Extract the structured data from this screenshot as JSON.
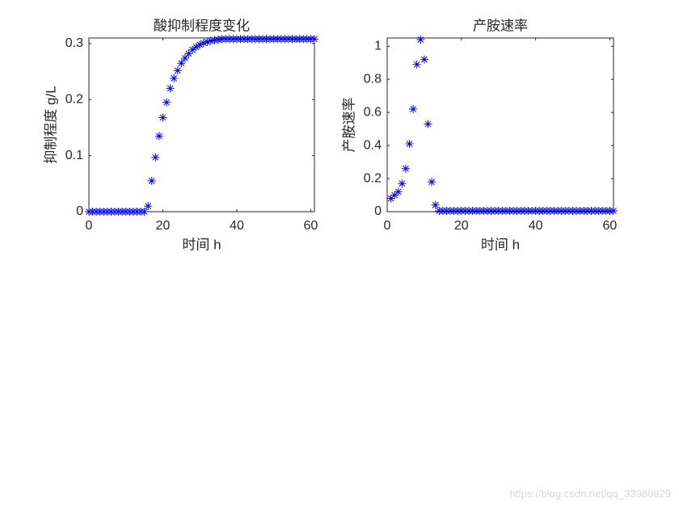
{
  "chart_data": [
    {
      "type": "scatter",
      "title": "酸抑制程度变化",
      "x_label": "时间 h",
      "y_label": "抑制程度 g/L",
      "color": "#0000ff",
      "marker": "asterisk",
      "xlim": [
        0,
        61
      ],
      "ylim": [
        0,
        0.31
      ],
      "xticks": [
        0,
        20,
        40,
        60
      ],
      "yticks": [
        0,
        0.1,
        0.2,
        0.3
      ],
      "grid": false,
      "x": [
        0,
        1,
        2,
        3,
        4,
        5,
        6,
        7,
        8,
        9,
        10,
        11,
        12,
        13,
        14,
        15,
        16,
        17,
        18,
        19,
        20,
        21,
        22,
        23,
        24,
        25,
        26,
        27,
        28,
        29,
        30,
        31,
        32,
        33,
        34,
        35,
        36,
        37,
        38,
        39,
        40,
        41,
        42,
        43,
        44,
        45,
        46,
        47,
        48,
        49,
        50,
        51,
        52,
        53,
        54,
        55,
        56,
        57,
        58,
        59,
        60,
        61
      ],
      "values": [
        0,
        0,
        0,
        0,
        0,
        0,
        0,
        0,
        0,
        0,
        0,
        0,
        0,
        0,
        0,
        0,
        0.01,
        0.055,
        0.097,
        0.135,
        0.168,
        0.195,
        0.22,
        0.238,
        0.252,
        0.265,
        0.274,
        0.282,
        0.289,
        0.294,
        0.298,
        0.301,
        0.303,
        0.305,
        0.306,
        0.307,
        0.308,
        0.308,
        0.308,
        0.308,
        0.308,
        0.308,
        0.308,
        0.308,
        0.308,
        0.308,
        0.308,
        0.308,
        0.308,
        0.308,
        0.308,
        0.308,
        0.308,
        0.308,
        0.308,
        0.308,
        0.308,
        0.308,
        0.308,
        0.308,
        0.308,
        0.308
      ]
    },
    {
      "type": "scatter",
      "title": "产胺速率",
      "x_label": "时间 h",
      "y_label": "产胺速率",
      "color": "#0000ff",
      "marker": "asterisk",
      "xlim": [
        0,
        61
      ],
      "ylim": [
        0,
        1.05
      ],
      "xticks": [
        0,
        20,
        40,
        60
      ],
      "yticks": [
        0,
        0.2,
        0.4,
        0.6,
        0.8,
        1
      ],
      "grid": false,
      "x": [
        1,
        2,
        3,
        4,
        5,
        6,
        7,
        8,
        9,
        10,
        11,
        12,
        13,
        14,
        15,
        16,
        17,
        18,
        19,
        20,
        21,
        22,
        23,
        24,
        25,
        26,
        27,
        28,
        29,
        30,
        31,
        32,
        33,
        34,
        35,
        36,
        37,
        38,
        39,
        40,
        41,
        42,
        43,
        44,
        45,
        46,
        47,
        48,
        49,
        50,
        51,
        52,
        53,
        54,
        55,
        56,
        57,
        58,
        59,
        60,
        61
      ],
      "values": [
        0.08,
        0.1,
        0.12,
        0.17,
        0.26,
        0.41,
        0.62,
        0.89,
        1.04,
        0.92,
        0.53,
        0.18,
        0.04,
        0.005,
        0.005,
        0.005,
        0.005,
        0.005,
        0.005,
        0.005,
        0.005,
        0.005,
        0.005,
        0.005,
        0.005,
        0.005,
        0.005,
        0.005,
        0.005,
        0.005,
        0.005,
        0.005,
        0.005,
        0.005,
        0.005,
        0.005,
        0.005,
        0.005,
        0.005,
        0.005,
        0.005,
        0.005,
        0.005,
        0.005,
        0.005,
        0.005,
        0.005,
        0.005,
        0.005,
        0.005,
        0.005,
        0.005,
        0.005,
        0.005,
        0.005,
        0.005,
        0.005,
        0.005,
        0.005,
        0.005,
        0.005
      ]
    }
  ],
  "watermark": "https://blog.csdn.net/qq_33980829"
}
